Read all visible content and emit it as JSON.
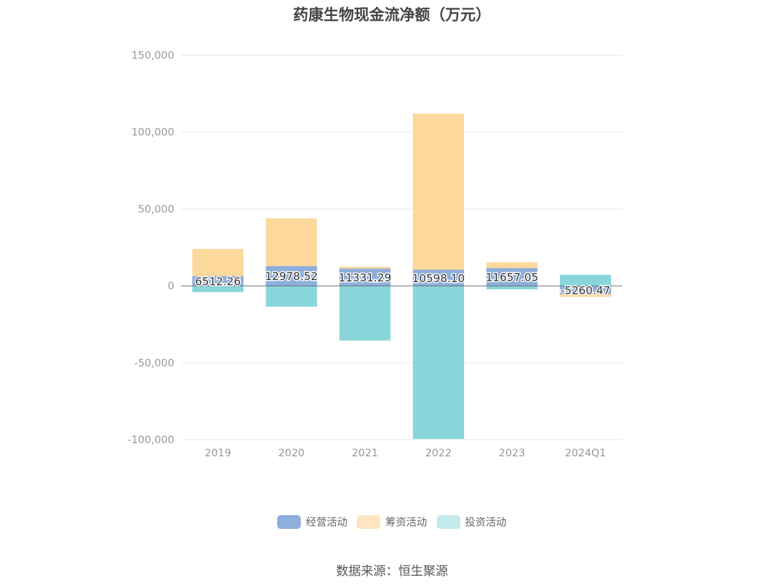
{
  "chart_data": {
    "type": "bar",
    "stacked": true,
    "title": "药康生物现金流净额（万元）",
    "categories": [
      "2019",
      "2020",
      "2021",
      "2022",
      "2023",
      "2024Q1"
    ],
    "ylim": [
      -100000,
      150000
    ],
    "yticks": [
      150000,
      100000,
      50000,
      0,
      -50000,
      -100000
    ],
    "ytick_labels": [
      "150,000",
      "100,000",
      "50,000",
      "0",
      "-50,000",
      "-100,000"
    ],
    "grid": true,
    "legend_position": "bottom",
    "series": [
      {
        "name": "经营活动",
        "color": "#8eaedb",
        "values": [
          6512.26,
          12978.52,
          11331.29,
          10598.1,
          11657.05,
          -5260.47
        ]
      },
      {
        "name": "筹资活动",
        "color": "#fdd89c",
        "values": [
          17500,
          31000,
          1200,
          101400,
          3800,
          -1800
        ]
      },
      {
        "name": "投资活动",
        "color": "#88d6da",
        "values": [
          -4000,
          -13500,
          -35500,
          -99500,
          -2200,
          7200
        ]
      }
    ],
    "data_labels": [
      "6512.26",
      "12978.52",
      "11331.29",
      "10598.10",
      "11657.05",
      "-5260.47"
    ]
  },
  "legend": {
    "items": [
      {
        "label": "经营活动",
        "color": "#8eaedb"
      },
      {
        "label": "筹资活动",
        "color": "#fde5c2"
      },
      {
        "label": "投资活动",
        "color": "#c5eaec"
      }
    ]
  },
  "source_text": "数据来源：恒生聚源"
}
